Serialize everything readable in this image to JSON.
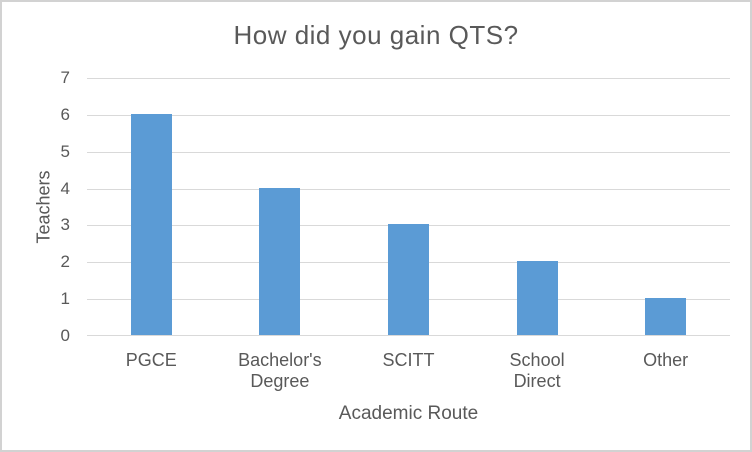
{
  "chart_data": {
    "type": "bar",
    "title": "How did you gain QTS?",
    "categories": [
      "PGCE",
      "Bachelor's Degree",
      "SCITT",
      "School Direct",
      "Other"
    ],
    "values": [
      6,
      4,
      3,
      2,
      1
    ],
    "xlabel": "Academic Route",
    "ylabel": "Teachers",
    "ylim": [
      0,
      7
    ],
    "ytick_step": 1,
    "yticks": [
      0,
      1,
      2,
      3,
      4,
      5,
      6,
      7
    ],
    "grid": true,
    "legend": false,
    "bar_color": "#5b9bd5",
    "gridline_color": "#d9d9d9",
    "text_color": "#595959",
    "border_color": "#d2d2d2"
  }
}
